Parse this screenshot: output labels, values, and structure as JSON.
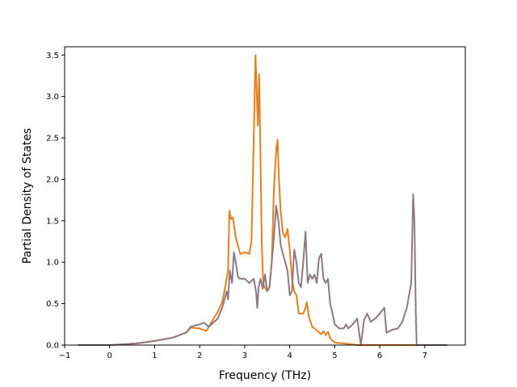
{
  "chart_data": {
    "type": "line",
    "title": "",
    "xlabel": "Frequency (THz)",
    "ylabel": "Partial Density of States",
    "xlim": [
      -1.0,
      7.9
    ],
    "ylim": [
      0.0,
      3.6
    ],
    "xticks": [
      -1,
      0,
      1,
      2,
      3,
      4,
      5,
      6,
      7
    ],
    "yticks": [
      0.0,
      0.5,
      1.0,
      1.5,
      2.0,
      2.5,
      3.0,
      3.5
    ],
    "xtick_labels": [
      "−1",
      "0",
      "1",
      "2",
      "3",
      "4",
      "5",
      "6",
      "7"
    ],
    "ytick_labels": [
      "0.0",
      "0.5",
      "1.0",
      "1.5",
      "2.0",
      "2.5",
      "3.0",
      "3.5"
    ],
    "grid": false,
    "series": [
      {
        "color": "#e87f1f",
        "points": [
          [
            -0.7,
            0.0
          ],
          [
            0.0,
            0.0
          ],
          [
            0.3,
            0.01
          ],
          [
            0.6,
            0.02
          ],
          [
            1.0,
            0.05
          ],
          [
            1.4,
            0.09
          ],
          [
            1.7,
            0.15
          ],
          [
            1.8,
            0.21
          ],
          [
            2.0,
            0.2
          ],
          [
            2.15,
            0.17
          ],
          [
            2.2,
            0.22
          ],
          [
            2.4,
            0.4
          ],
          [
            2.5,
            0.52
          ],
          [
            2.55,
            0.65
          ],
          [
            2.6,
            0.8
          ],
          [
            2.63,
            0.9
          ],
          [
            2.66,
            1.62
          ],
          [
            2.7,
            1.52
          ],
          [
            2.74,
            1.54
          ],
          [
            2.8,
            1.3
          ],
          [
            2.9,
            1.1
          ],
          [
            3.0,
            1.12
          ],
          [
            3.1,
            1.1
          ],
          [
            3.15,
            1.25
          ],
          [
            3.2,
            2.5
          ],
          [
            3.24,
            3.5
          ],
          [
            3.27,
            3.0
          ],
          [
            3.29,
            2.65
          ],
          [
            3.32,
            3.27
          ],
          [
            3.35,
            2.3
          ],
          [
            3.38,
            1.2
          ],
          [
            3.41,
            0.75
          ],
          [
            3.44,
            0.7
          ],
          [
            3.5,
            0.65
          ],
          [
            3.55,
            0.7
          ],
          [
            3.6,
            1.0
          ],
          [
            3.65,
            1.9
          ],
          [
            3.7,
            2.35
          ],
          [
            3.73,
            2.48
          ],
          [
            3.76,
            2.0
          ],
          [
            3.8,
            1.6
          ],
          [
            3.85,
            1.35
          ],
          [
            3.9,
            1.3
          ],
          [
            3.95,
            1.4
          ],
          [
            4.0,
            1.15
          ],
          [
            4.05,
            0.8
          ],
          [
            4.1,
            0.65
          ],
          [
            4.15,
            0.6
          ],
          [
            4.2,
            0.38
          ],
          [
            4.3,
            0.38
          ],
          [
            4.35,
            0.45
          ],
          [
            4.38,
            0.52
          ],
          [
            4.42,
            0.35
          ],
          [
            4.5,
            0.22
          ],
          [
            4.6,
            0.18
          ],
          [
            4.7,
            0.13
          ],
          [
            4.75,
            0.17
          ],
          [
            4.8,
            0.12
          ],
          [
            4.85,
            0.16
          ],
          [
            4.9,
            0.08
          ],
          [
            5.0,
            0.03
          ],
          [
            5.2,
            0.02
          ],
          [
            5.5,
            0.0
          ],
          [
            6.0,
            0.0
          ],
          [
            6.5,
            0.0
          ],
          [
            7.0,
            0.0
          ],
          [
            7.5,
            0.0
          ]
        ]
      },
      {
        "color": "#8c7a82",
        "points": [
          [
            -0.7,
            0.0
          ],
          [
            0.0,
            0.0
          ],
          [
            0.3,
            0.01
          ],
          [
            0.6,
            0.02
          ],
          [
            1.0,
            0.05
          ],
          [
            1.4,
            0.09
          ],
          [
            1.7,
            0.15
          ],
          [
            1.8,
            0.22
          ],
          [
            2.0,
            0.25
          ],
          [
            2.1,
            0.27
          ],
          [
            2.2,
            0.22
          ],
          [
            2.4,
            0.32
          ],
          [
            2.5,
            0.45
          ],
          [
            2.6,
            0.65
          ],
          [
            2.63,
            0.55
          ],
          [
            2.67,
            0.9
          ],
          [
            2.72,
            0.75
          ],
          [
            2.76,
            1.12
          ],
          [
            2.8,
            1.0
          ],
          [
            2.85,
            0.82
          ],
          [
            2.9,
            0.8
          ],
          [
            3.0,
            0.8
          ],
          [
            3.1,
            0.75
          ],
          [
            3.2,
            0.8
          ],
          [
            3.25,
            0.65
          ],
          [
            3.28,
            0.45
          ],
          [
            3.31,
            0.7
          ],
          [
            3.35,
            0.8
          ],
          [
            3.4,
            0.68
          ],
          [
            3.45,
            0.85
          ],
          [
            3.5,
            0.65
          ],
          [
            3.55,
            0.7
          ],
          [
            3.6,
            1.0
          ],
          [
            3.65,
            1.3
          ],
          [
            3.7,
            1.68
          ],
          [
            3.75,
            1.5
          ],
          [
            3.8,
            1.2
          ],
          [
            3.85,
            1.1
          ],
          [
            3.9,
            1.0
          ],
          [
            3.95,
            0.9
          ],
          [
            4.0,
            0.6
          ],
          [
            4.05,
            0.65
          ],
          [
            4.1,
            1.15
          ],
          [
            4.15,
            1.0
          ],
          [
            4.2,
            0.75
          ],
          [
            4.25,
            0.7
          ],
          [
            4.3,
            1.0
          ],
          [
            4.35,
            1.37
          ],
          [
            4.4,
            0.75
          ],
          [
            4.45,
            0.85
          ],
          [
            4.5,
            0.8
          ],
          [
            4.55,
            0.85
          ],
          [
            4.6,
            0.75
          ],
          [
            4.65,
            1.05
          ],
          [
            4.7,
            1.1
          ],
          [
            4.75,
            0.8
          ],
          [
            4.8,
            0.75
          ],
          [
            4.85,
            0.8
          ],
          [
            4.9,
            0.5
          ],
          [
            4.95,
            0.38
          ],
          [
            5.0,
            0.25
          ],
          [
            5.1,
            0.2
          ],
          [
            5.2,
            0.2
          ],
          [
            5.25,
            0.25
          ],
          [
            5.3,
            0.2
          ],
          [
            5.4,
            0.25
          ],
          [
            5.5,
            0.32
          ],
          [
            5.58,
            0.0
          ],
          [
            5.65,
            0.3
          ],
          [
            5.72,
            0.38
          ],
          [
            5.8,
            0.28
          ],
          [
            5.9,
            0.32
          ],
          [
            6.0,
            0.38
          ],
          [
            6.1,
            0.45
          ],
          [
            6.15,
            0.15
          ],
          [
            6.25,
            0.18
          ],
          [
            6.4,
            0.2
          ],
          [
            6.5,
            0.28
          ],
          [
            6.6,
            0.45
          ],
          [
            6.7,
            0.75
          ],
          [
            6.74,
            1.82
          ],
          [
            6.77,
            1.5
          ],
          [
            6.8,
            0.4
          ],
          [
            6.82,
            0.0
          ],
          [
            7.0,
            0.0
          ],
          [
            7.5,
            0.0
          ]
        ]
      }
    ]
  }
}
